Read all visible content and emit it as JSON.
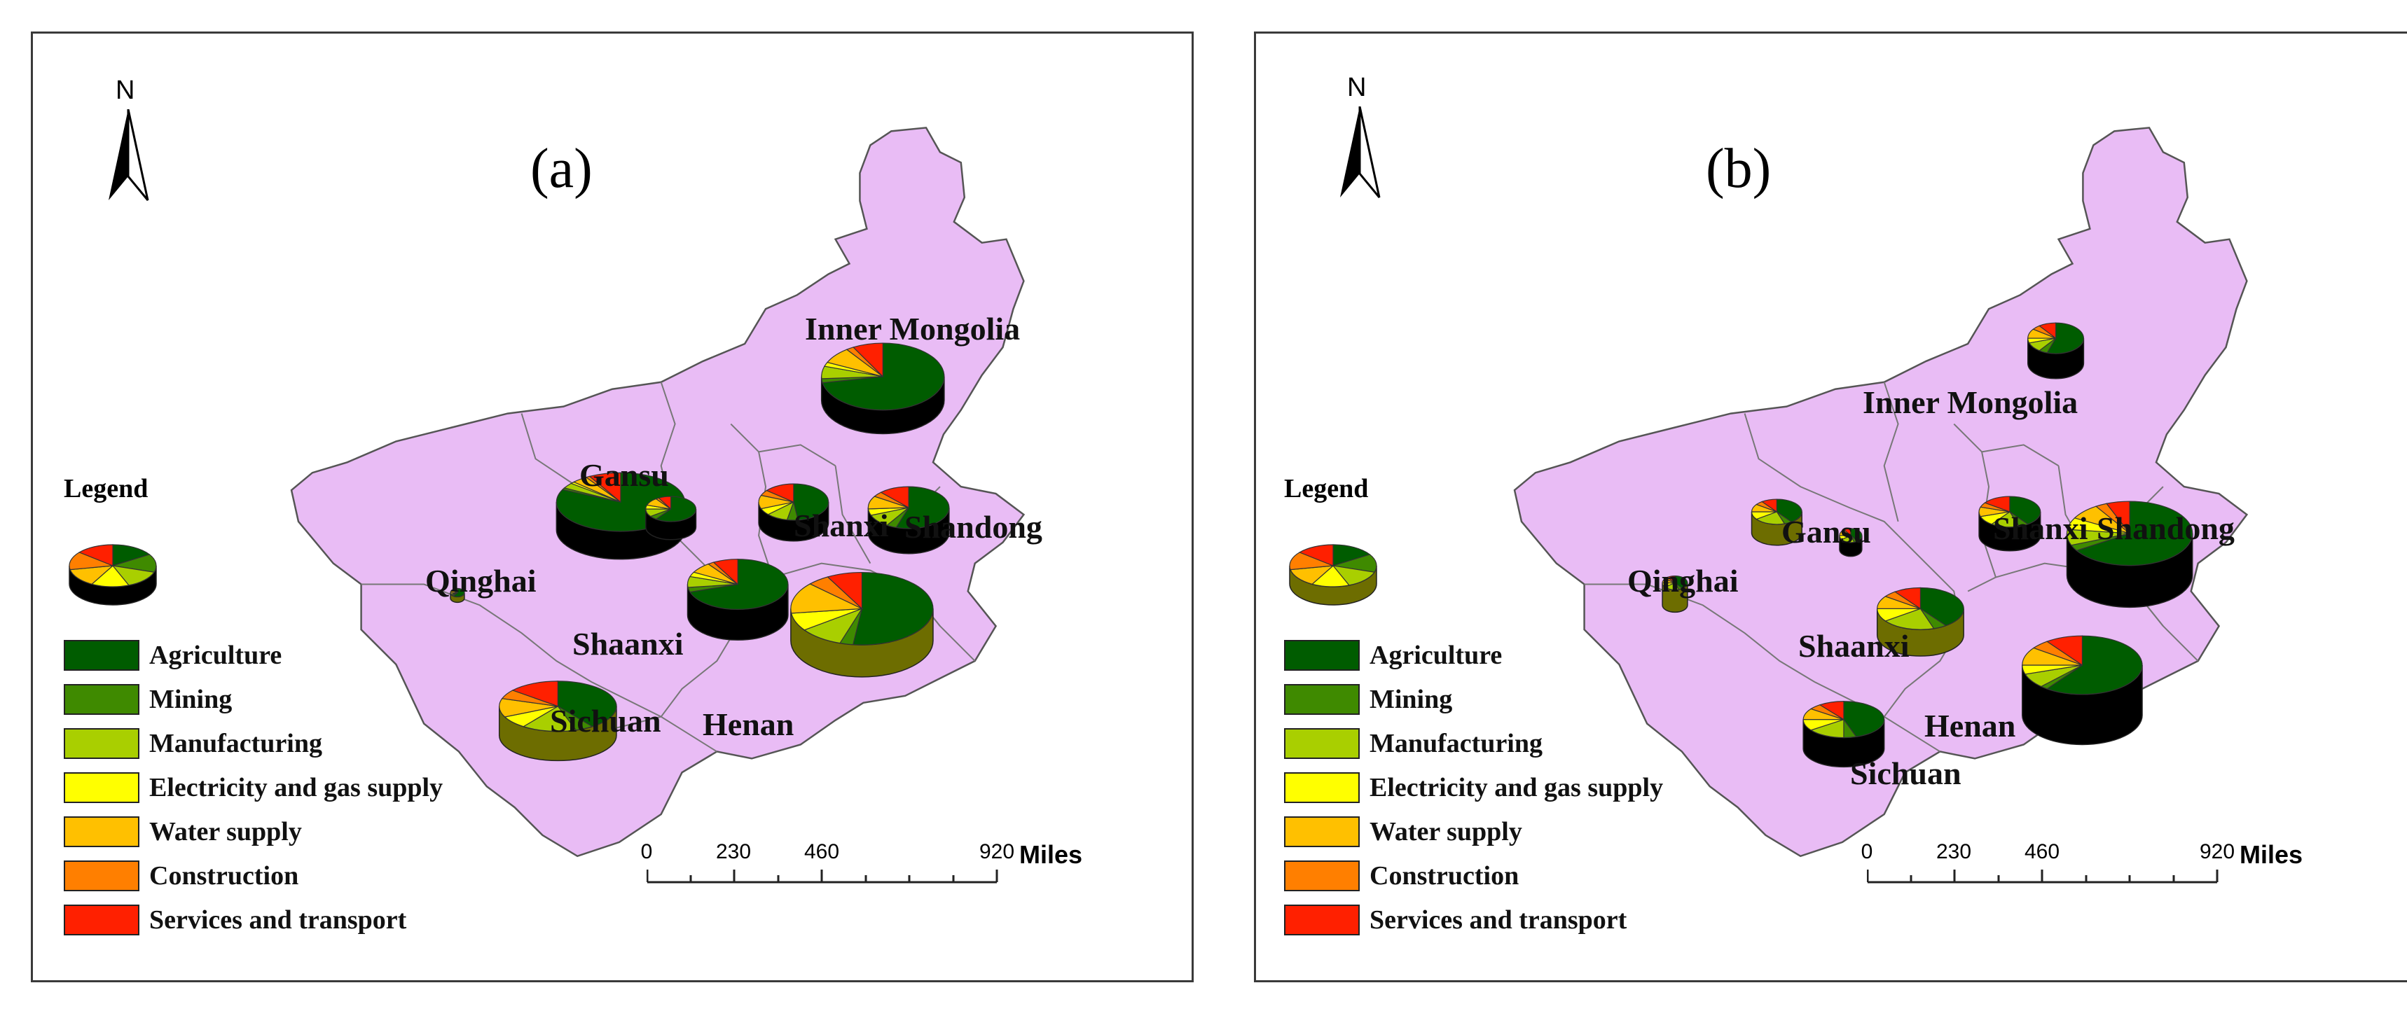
{
  "panels": [
    {
      "letter": "(a)"
    },
    {
      "letter": "(b)"
    }
  ],
  "north_label": "N",
  "legend": {
    "title": "Legend",
    "items": [
      {
        "label": "Agriculture",
        "color": "#005c00"
      },
      {
        "label": "Mining",
        "color": "#3f8a00"
      },
      {
        "label": "Manufacturing",
        "color": "#a9cf00"
      },
      {
        "label": "Electricity and gas supply",
        "color": "#ffff00"
      },
      {
        "label": "Water supply",
        "color": "#ffc000"
      },
      {
        "label": "Construction",
        "color": "#ff7f00"
      },
      {
        "label": "Services and transport",
        "color": "#ff2000"
      }
    ]
  },
  "scale": {
    "ticks": [
      "0",
      "230",
      "460",
      "920"
    ],
    "unit": "Miles"
  },
  "provinces": {
    "inner_mongolia": "Inner Mongolia",
    "gansu": "Gansu",
    "qinghai": "Qinghai",
    "shanxi": "Shanxi",
    "shandong": "Shandong",
    "shaanxi": "Shaanxi",
    "henan": "Henan",
    "sichuan": "Sichuan"
  },
  "colors": {
    "map_fill": "#e9bcf5",
    "map_stroke": "#555555",
    "pie_side": "#000000"
  }
}
